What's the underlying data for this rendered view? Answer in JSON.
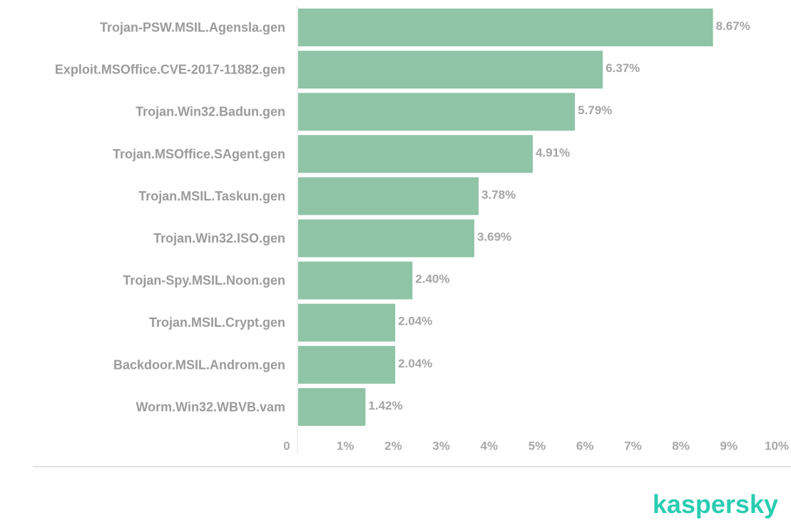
{
  "chart_data": {
    "type": "bar",
    "orientation": "horizontal",
    "categories": [
      "Trojan-PSW.MSIL.Agensla.gen",
      "Exploit.MSOffice.CVE-2017-11882.gen",
      "Trojan.Win32.Badun.gen",
      "Trojan.MSOffice.SAgent.gen",
      "Trojan.MSIL.Taskun.gen",
      "Trojan.Win32.ISO.gen",
      "Trojan-Spy.MSIL.Noon.gen",
      "Trojan.MSIL.Crypt.gen",
      "Backdoor.MSIL.Androm.gen",
      "Worm.Win32.WBVB.vam"
    ],
    "values": [
      8.67,
      6.37,
      5.79,
      4.91,
      3.78,
      3.69,
      2.4,
      2.04,
      2.04,
      1.42
    ],
    "value_labels": [
      "8.67%",
      "6.37%",
      "5.79%",
      "4.91%",
      "3.78%",
      "3.69%",
      "2.40%",
      "2.04%",
      "2.04%",
      "1.42%"
    ],
    "xlim": [
      0,
      10
    ],
    "x_ticks": [
      "0",
      "1%",
      "2%",
      "3%",
      "4%",
      "5%",
      "6%",
      "7%",
      "8%",
      "9%",
      "10%"
    ],
    "grid": false,
    "legend": "none",
    "bar_color": "#8fc4a7",
    "title": "",
    "xlabel": "",
    "ylabel": ""
  },
  "branding": {
    "logo_text": "kaspersky",
    "logo_color": "#29ccb1"
  }
}
